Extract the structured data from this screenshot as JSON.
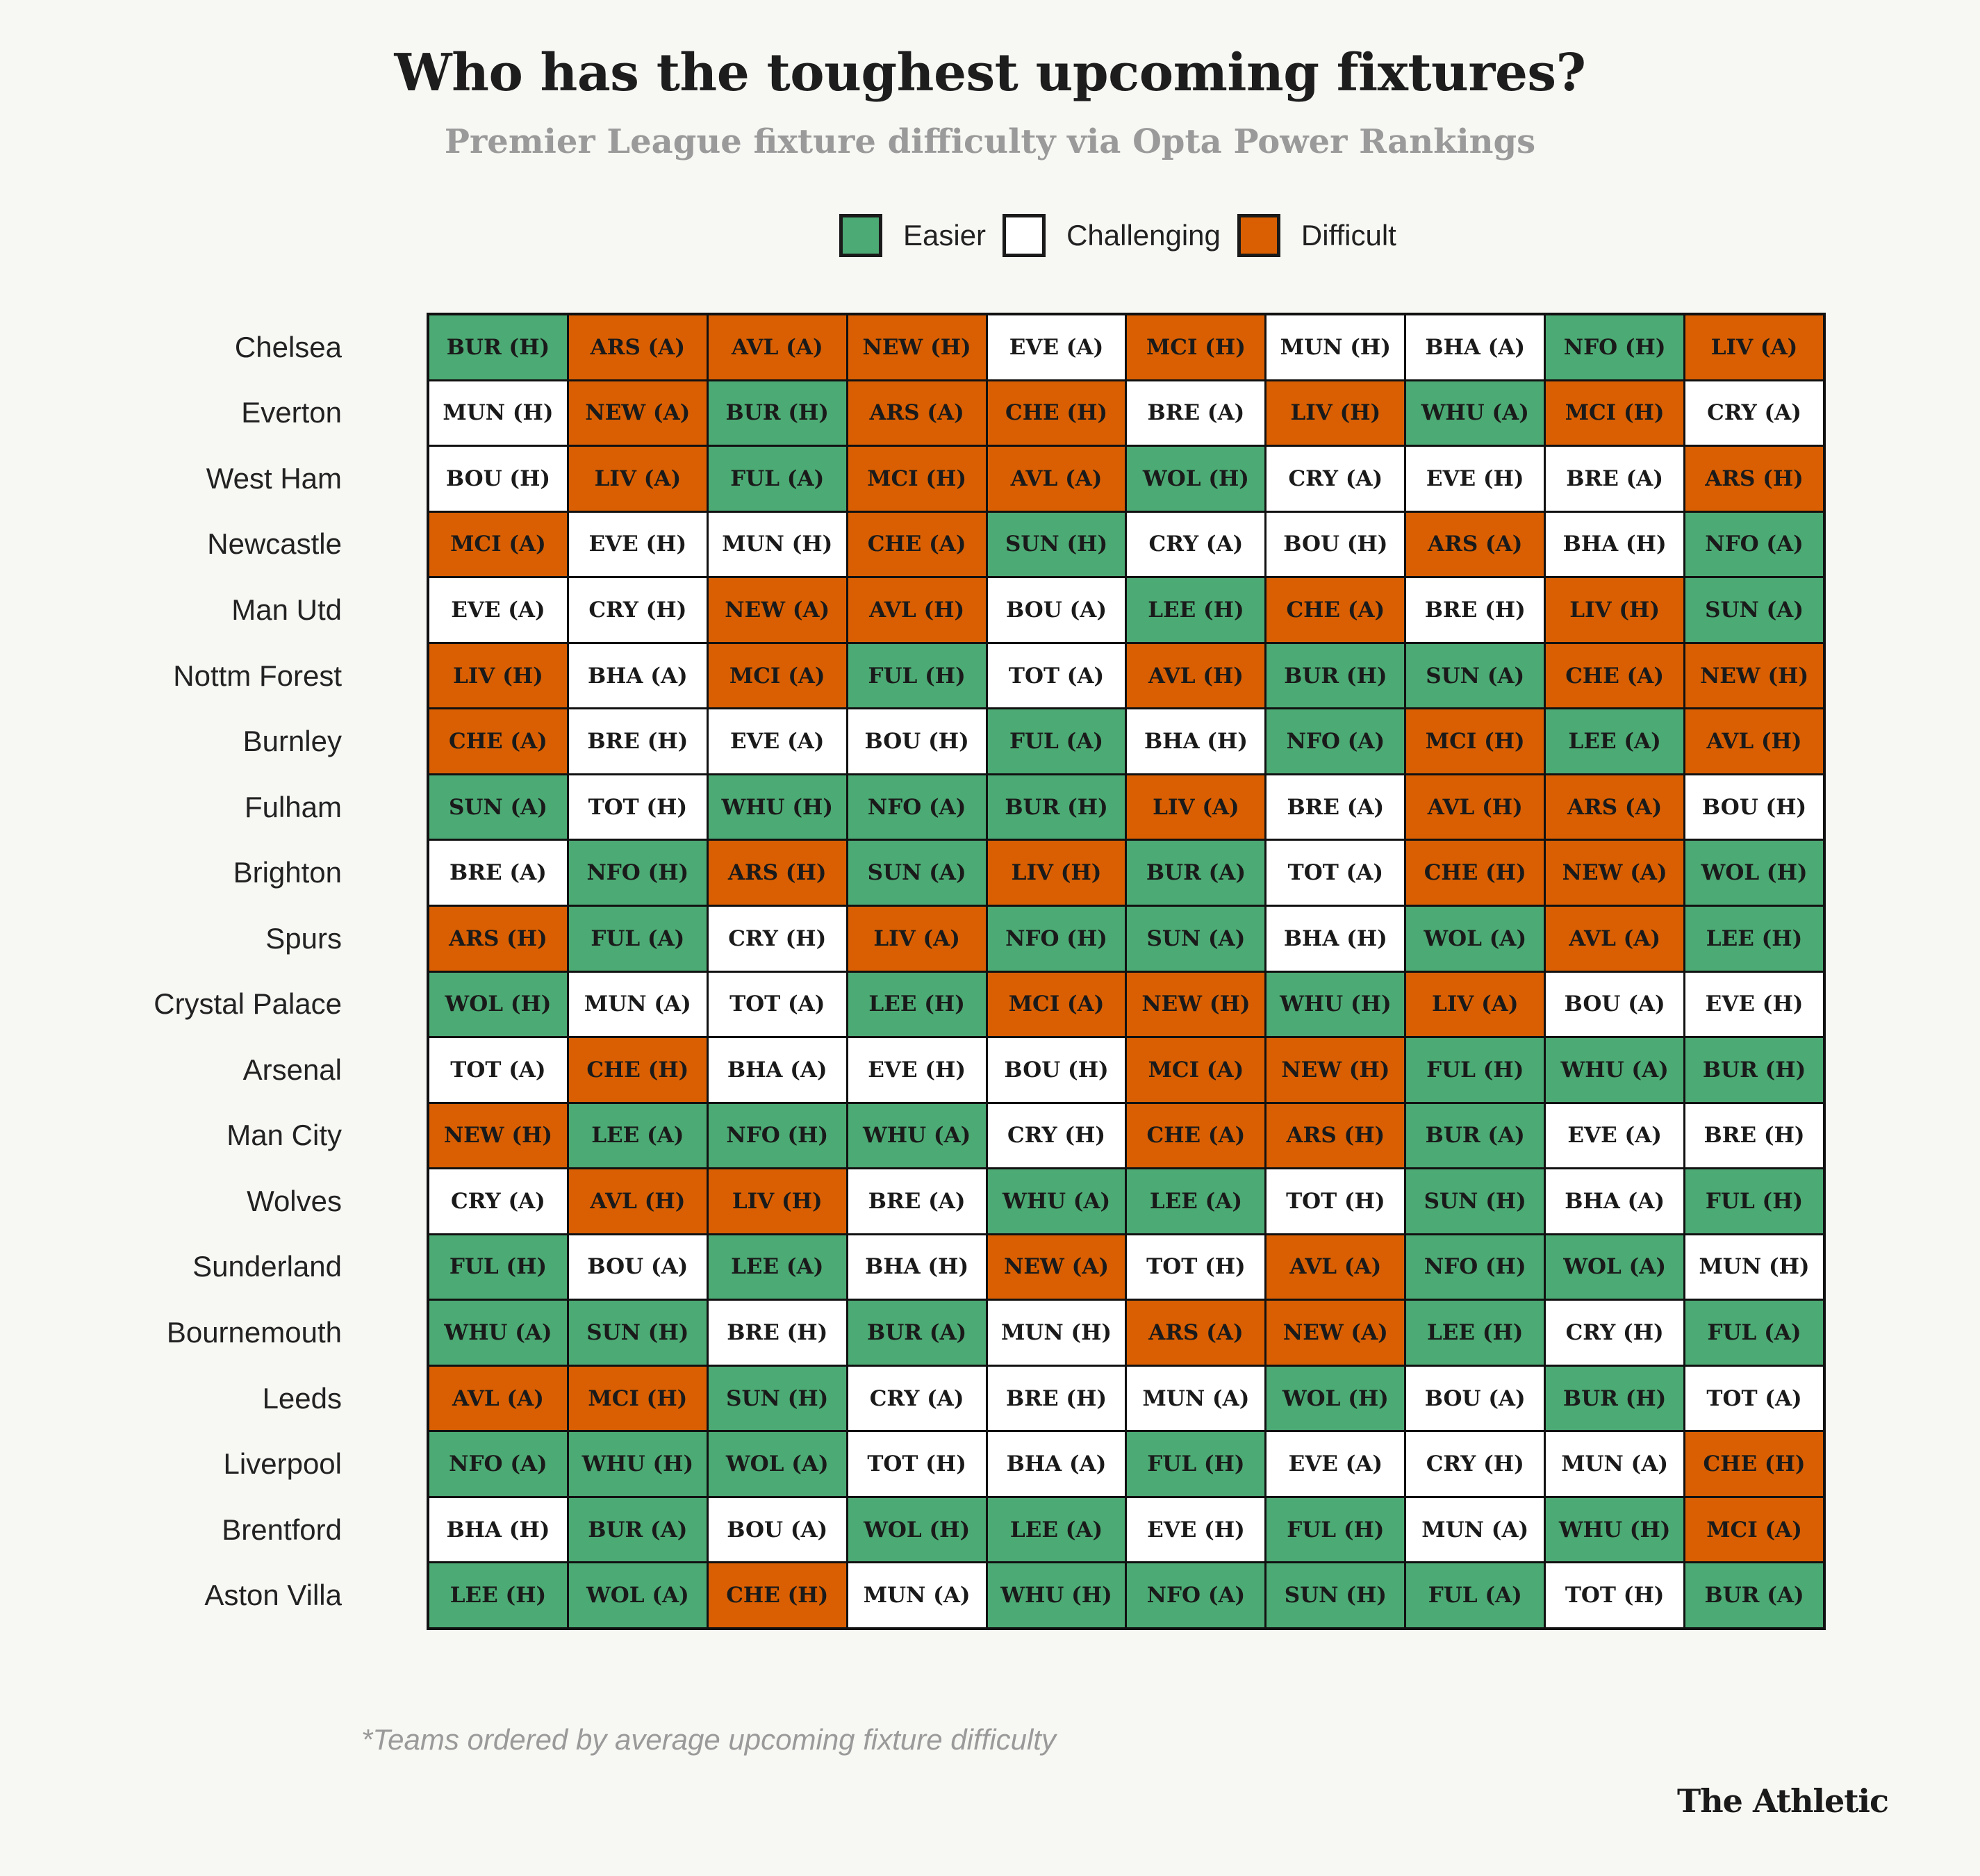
{
  "header": {
    "title": "Who has the toughest upcoming fixtures?",
    "subtitle": "Premier League fixture difficulty via Opta Power Rankings"
  },
  "legend": [
    {
      "key": "e",
      "label": "Easier",
      "color": "#4caa74"
    },
    {
      "key": "c",
      "label": "Challenging",
      "color": "#ffffff"
    },
    {
      "key": "d",
      "label": "Difficult",
      "color": "#d95f02"
    }
  ],
  "footnote": "*Teams ordered by average upcoming fixture difficulty",
  "brand": "The Athletic",
  "chart_data": {
    "type": "table",
    "title": "Who has the toughest upcoming fixtures?",
    "subtitle": "Premier League fixture difficulty via Opta Power Rankings",
    "rows": [
      {
        "team": "Chelsea",
        "fixtures": [
          [
            "BUR (H)",
            "e"
          ],
          [
            "ARS (A)",
            "d"
          ],
          [
            "AVL (A)",
            "d"
          ],
          [
            "NEW (H)",
            "d"
          ],
          [
            "EVE (A)",
            "c"
          ],
          [
            "MCI (H)",
            "d"
          ],
          [
            "MUN (H)",
            "c"
          ],
          [
            "BHA (A)",
            "c"
          ],
          [
            "NFO (H)",
            "e"
          ],
          [
            "LIV (A)",
            "d"
          ]
        ]
      },
      {
        "team": "Everton",
        "fixtures": [
          [
            "MUN (H)",
            "c"
          ],
          [
            "NEW (A)",
            "d"
          ],
          [
            "BUR (H)",
            "e"
          ],
          [
            "ARS (A)",
            "d"
          ],
          [
            "CHE (H)",
            "d"
          ],
          [
            "BRE (A)",
            "c"
          ],
          [
            "LIV (H)",
            "d"
          ],
          [
            "WHU (A)",
            "e"
          ],
          [
            "MCI (H)",
            "d"
          ],
          [
            "CRY (A)",
            "c"
          ]
        ]
      },
      {
        "team": "West Ham",
        "fixtures": [
          [
            "BOU (H)",
            "c"
          ],
          [
            "LIV (A)",
            "d"
          ],
          [
            "FUL (A)",
            "e"
          ],
          [
            "MCI (H)",
            "d"
          ],
          [
            "AVL (A)",
            "d"
          ],
          [
            "WOL (H)",
            "e"
          ],
          [
            "CRY (A)",
            "c"
          ],
          [
            "EVE (H)",
            "c"
          ],
          [
            "BRE (A)",
            "c"
          ],
          [
            "ARS (H)",
            "d"
          ]
        ]
      },
      {
        "team": "Newcastle",
        "fixtures": [
          [
            "MCI (A)",
            "d"
          ],
          [
            "EVE (H)",
            "c"
          ],
          [
            "MUN (H)",
            "c"
          ],
          [
            "CHE (A)",
            "d"
          ],
          [
            "SUN (H)",
            "e"
          ],
          [
            "CRY (A)",
            "c"
          ],
          [
            "BOU (H)",
            "c"
          ],
          [
            "ARS (A)",
            "d"
          ],
          [
            "BHA (H)",
            "c"
          ],
          [
            "NFO (A)",
            "e"
          ]
        ]
      },
      {
        "team": "Man Utd",
        "fixtures": [
          [
            "EVE (A)",
            "c"
          ],
          [
            "CRY (H)",
            "c"
          ],
          [
            "NEW (A)",
            "d"
          ],
          [
            "AVL (H)",
            "d"
          ],
          [
            "BOU (A)",
            "c"
          ],
          [
            "LEE (H)",
            "e"
          ],
          [
            "CHE (A)",
            "d"
          ],
          [
            "BRE (H)",
            "c"
          ],
          [
            "LIV (H)",
            "d"
          ],
          [
            "SUN (A)",
            "e"
          ]
        ]
      },
      {
        "team": "Nottm Forest",
        "fixtures": [
          [
            "LIV (H)",
            "d"
          ],
          [
            "BHA (A)",
            "c"
          ],
          [
            "MCI (A)",
            "d"
          ],
          [
            "FUL (H)",
            "e"
          ],
          [
            "TOT (A)",
            "c"
          ],
          [
            "AVL (H)",
            "d"
          ],
          [
            "BUR (H)",
            "e"
          ],
          [
            "SUN (A)",
            "e"
          ],
          [
            "CHE (A)",
            "d"
          ],
          [
            "NEW (H)",
            "d"
          ]
        ]
      },
      {
        "team": "Burnley",
        "fixtures": [
          [
            "CHE (A)",
            "d"
          ],
          [
            "BRE (H)",
            "c"
          ],
          [
            "EVE (A)",
            "c"
          ],
          [
            "BOU (H)",
            "c"
          ],
          [
            "FUL (A)",
            "e"
          ],
          [
            "BHA (H)",
            "c"
          ],
          [
            "NFO (A)",
            "e"
          ],
          [
            "MCI (H)",
            "d"
          ],
          [
            "LEE (A)",
            "e"
          ],
          [
            "AVL (H)",
            "d"
          ]
        ]
      },
      {
        "team": "Fulham",
        "fixtures": [
          [
            "SUN (A)",
            "e"
          ],
          [
            "TOT (H)",
            "c"
          ],
          [
            "WHU (H)",
            "e"
          ],
          [
            "NFO (A)",
            "e"
          ],
          [
            "BUR (H)",
            "e"
          ],
          [
            "LIV (A)",
            "d"
          ],
          [
            "BRE (A)",
            "c"
          ],
          [
            "AVL (H)",
            "d"
          ],
          [
            "ARS (A)",
            "d"
          ],
          [
            "BOU (H)",
            "c"
          ]
        ]
      },
      {
        "team": "Brighton",
        "fixtures": [
          [
            "BRE (A)",
            "c"
          ],
          [
            "NFO (H)",
            "e"
          ],
          [
            "ARS (H)",
            "d"
          ],
          [
            "SUN (A)",
            "e"
          ],
          [
            "LIV (H)",
            "d"
          ],
          [
            "BUR (A)",
            "e"
          ],
          [
            "TOT (A)",
            "c"
          ],
          [
            "CHE (H)",
            "d"
          ],
          [
            "NEW (A)",
            "d"
          ],
          [
            "WOL (H)",
            "e"
          ]
        ]
      },
      {
        "team": "Spurs",
        "fixtures": [
          [
            "ARS (H)",
            "d"
          ],
          [
            "FUL (A)",
            "e"
          ],
          [
            "CRY (H)",
            "c"
          ],
          [
            "LIV (A)",
            "d"
          ],
          [
            "NFO (H)",
            "e"
          ],
          [
            "SUN (A)",
            "e"
          ],
          [
            "BHA (H)",
            "c"
          ],
          [
            "WOL (A)",
            "e"
          ],
          [
            "AVL (A)",
            "d"
          ],
          [
            "LEE (H)",
            "e"
          ]
        ]
      },
      {
        "team": "Crystal Palace",
        "fixtures": [
          [
            "WOL (H)",
            "e"
          ],
          [
            "MUN (A)",
            "c"
          ],
          [
            "TOT (A)",
            "c"
          ],
          [
            "LEE (H)",
            "e"
          ],
          [
            "MCI (A)",
            "d"
          ],
          [
            "NEW (H)",
            "d"
          ],
          [
            "WHU (H)",
            "e"
          ],
          [
            "LIV (A)",
            "d"
          ],
          [
            "BOU (A)",
            "c"
          ],
          [
            "EVE (H)",
            "c"
          ]
        ]
      },
      {
        "team": "Arsenal",
        "fixtures": [
          [
            "TOT (A)",
            "c"
          ],
          [
            "CHE (H)",
            "d"
          ],
          [
            "BHA (A)",
            "c"
          ],
          [
            "EVE (H)",
            "c"
          ],
          [
            "BOU (H)",
            "c"
          ],
          [
            "MCI (A)",
            "d"
          ],
          [
            "NEW (H)",
            "d"
          ],
          [
            "FUL (H)",
            "e"
          ],
          [
            "WHU (A)",
            "e"
          ],
          [
            "BUR (H)",
            "e"
          ]
        ]
      },
      {
        "team": "Man City",
        "fixtures": [
          [
            "NEW (H)",
            "d"
          ],
          [
            "LEE (A)",
            "e"
          ],
          [
            "NFO (H)",
            "e"
          ],
          [
            "WHU (A)",
            "e"
          ],
          [
            "CRY (H)",
            "c"
          ],
          [
            "CHE (A)",
            "d"
          ],
          [
            "ARS (H)",
            "d"
          ],
          [
            "BUR (A)",
            "e"
          ],
          [
            "EVE (A)",
            "c"
          ],
          [
            "BRE (H)",
            "c"
          ]
        ]
      },
      {
        "team": "Wolves",
        "fixtures": [
          [
            "CRY (A)",
            "c"
          ],
          [
            "AVL (H)",
            "d"
          ],
          [
            "LIV (H)",
            "d"
          ],
          [
            "BRE (A)",
            "c"
          ],
          [
            "WHU (A)",
            "e"
          ],
          [
            "LEE (A)",
            "e"
          ],
          [
            "TOT (H)",
            "c"
          ],
          [
            "SUN (H)",
            "e"
          ],
          [
            "BHA (A)",
            "c"
          ],
          [
            "FUL (H)",
            "e"
          ]
        ]
      },
      {
        "team": "Sunderland",
        "fixtures": [
          [
            "FUL (H)",
            "e"
          ],
          [
            "BOU (A)",
            "c"
          ],
          [
            "LEE (A)",
            "e"
          ],
          [
            "BHA (H)",
            "c"
          ],
          [
            "NEW (A)",
            "d"
          ],
          [
            "TOT (H)",
            "c"
          ],
          [
            "AVL (A)",
            "d"
          ],
          [
            "NFO (H)",
            "e"
          ],
          [
            "WOL (A)",
            "e"
          ],
          [
            "MUN (H)",
            "c"
          ]
        ]
      },
      {
        "team": "Bournemouth",
        "fixtures": [
          [
            "WHU (A)",
            "e"
          ],
          [
            "SUN (H)",
            "e"
          ],
          [
            "BRE (H)",
            "c"
          ],
          [
            "BUR (A)",
            "e"
          ],
          [
            "MUN (H)",
            "c"
          ],
          [
            "ARS (A)",
            "d"
          ],
          [
            "NEW (A)",
            "d"
          ],
          [
            "LEE (H)",
            "e"
          ],
          [
            "CRY (H)",
            "c"
          ],
          [
            "FUL (A)",
            "e"
          ]
        ]
      },
      {
        "team": "Leeds",
        "fixtures": [
          [
            "AVL (A)",
            "d"
          ],
          [
            "MCI (H)",
            "d"
          ],
          [
            "SUN (H)",
            "e"
          ],
          [
            "CRY (A)",
            "c"
          ],
          [
            "BRE (H)",
            "c"
          ],
          [
            "MUN (A)",
            "c"
          ],
          [
            "WOL (H)",
            "e"
          ],
          [
            "BOU (A)",
            "c"
          ],
          [
            "BUR (H)",
            "e"
          ],
          [
            "TOT (A)",
            "c"
          ]
        ]
      },
      {
        "team": "Liverpool",
        "fixtures": [
          [
            "NFO (A)",
            "e"
          ],
          [
            "WHU (H)",
            "e"
          ],
          [
            "WOL (A)",
            "e"
          ],
          [
            "TOT (H)",
            "c"
          ],
          [
            "BHA (A)",
            "c"
          ],
          [
            "FUL (H)",
            "e"
          ],
          [
            "EVE (A)",
            "c"
          ],
          [
            "CRY (H)",
            "c"
          ],
          [
            "MUN (A)",
            "c"
          ],
          [
            "CHE (H)",
            "d"
          ]
        ]
      },
      {
        "team": "Brentford",
        "fixtures": [
          [
            "BHA (H)",
            "c"
          ],
          [
            "BUR (A)",
            "e"
          ],
          [
            "BOU (A)",
            "c"
          ],
          [
            "WOL (H)",
            "e"
          ],
          [
            "LEE (A)",
            "e"
          ],
          [
            "EVE (H)",
            "c"
          ],
          [
            "FUL (H)",
            "e"
          ],
          [
            "MUN (A)",
            "c"
          ],
          [
            "WHU (H)",
            "e"
          ],
          [
            "MCI (A)",
            "d"
          ]
        ]
      },
      {
        "team": "Aston Villa",
        "fixtures": [
          [
            "LEE (H)",
            "e"
          ],
          [
            "WOL (A)",
            "e"
          ],
          [
            "CHE (H)",
            "d"
          ],
          [
            "MUN (A)",
            "c"
          ],
          [
            "WHU (H)",
            "e"
          ],
          [
            "NFO (A)",
            "e"
          ],
          [
            "SUN (H)",
            "e"
          ],
          [
            "FUL (A)",
            "e"
          ],
          [
            "TOT (H)",
            "c"
          ],
          [
            "BUR (A)",
            "e"
          ]
        ]
      }
    ]
  }
}
